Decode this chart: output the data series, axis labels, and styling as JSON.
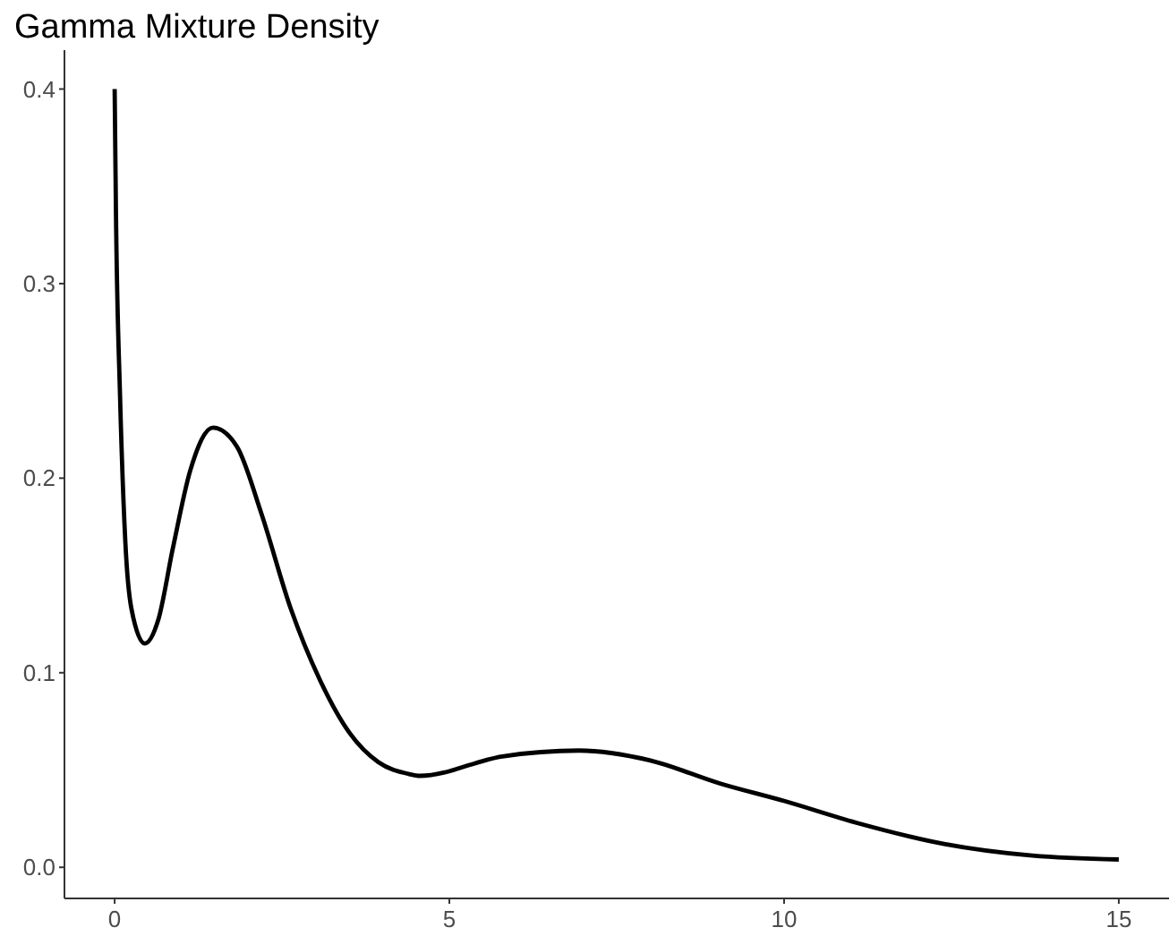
{
  "chart_data": {
    "type": "line",
    "title": "Gamma Mixture Density",
    "x": [
      0,
      0.02,
      0.08,
      0.16,
      0.25,
      0.45,
      0.65,
      0.87,
      1.13,
      1.47,
      1.83,
      2.19,
      2.63,
      3.07,
      3.51,
      3.94,
      4.39,
      4.56,
      5.79,
      6.94,
      7.99,
      9.05,
      10.01,
      11.07,
      12.39,
      13.71,
      15
    ],
    "series": [
      {
        "color": "#000000",
        "values": [
          0.4,
          0.335,
          0.243,
          0.167,
          0.133,
          0.115,
          0.127,
          0.164,
          0.204,
          0.226,
          0.216,
          0.182,
          0.133,
          0.096,
          0.069,
          0.054,
          0.048,
          0.047,
          0.057,
          0.06,
          0.055,
          0.043,
          0.034,
          0.023,
          0.012,
          0.006,
          0.004
        ]
      }
    ],
    "xlim": [
      -0.75,
      15.75
    ],
    "ylim": [
      -0.016,
      0.42
    ],
    "xticks": [
      0,
      5,
      10,
      15
    ],
    "yticks": [
      {
        "value": 0,
        "label": "0.0"
      },
      {
        "value": 0.1,
        "label": "0.1"
      },
      {
        "value": 0.2,
        "label": "0.2"
      },
      {
        "value": 0.3,
        "label": "0.3"
      },
      {
        "value": 0.4,
        "label": "0.4"
      }
    ],
    "grid": false,
    "line_style": "solid",
    "marker": "none"
  }
}
